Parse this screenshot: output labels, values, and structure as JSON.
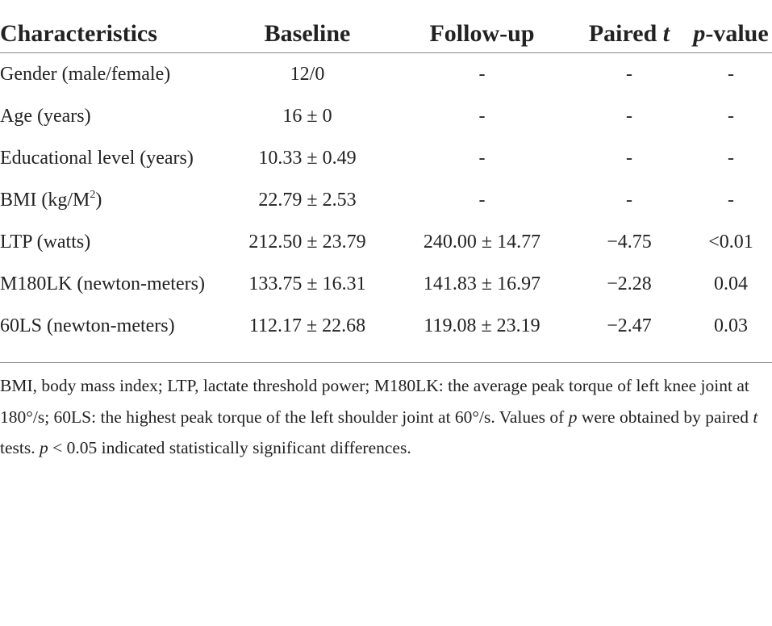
{
  "table": {
    "header": [
      "Characteristics",
      "Baseline",
      "Follow-up",
      [
        "Paired ",
        {
          "text": "t",
          "style": "italic"
        }
      ],
      [
        {
          "text": "p",
          "style": "italic"
        },
        "-value"
      ]
    ],
    "rows": [
      [
        "Gender (male/female)",
        "12/0",
        "-",
        "-",
        "-"
      ],
      [
        "Age (years)",
        "16 ± 0",
        "-",
        "-",
        "-"
      ],
      [
        "Educational level (years)",
        "10.33 ± 0.49",
        "-",
        "-",
        "-"
      ],
      [
        [
          "BMI (kg/M",
          {
            "text": "2",
            "style": "sup"
          },
          ")"
        ],
        "22.79 ± 2.53",
        "-",
        "-",
        "-"
      ],
      [
        "LTP (watts)",
        "212.50 ± 23.79",
        "240.00 ± 14.77",
        "−4.75",
        "<0.01"
      ],
      [
        "M180LK (newton-meters)",
        "133.75 ± 16.31",
        "141.83 ± 16.97",
        "−2.28",
        "0.04"
      ],
      [
        "60LS (newton-meters)",
        "112.17 ± 22.68",
        "119.08 ± 23.19",
        "−2.47",
        "0.03"
      ]
    ],
    "footnote": [
      "BMI, body mass index; LTP, lactate threshold power; M180LK: the average peak torque of left knee joint at 180°/s; 60LS: the highest peak torque of the left shoulder joint at 60°/s. Values of ",
      {
        "text": "p",
        "style": "italic"
      },
      " were obtained by paired ",
      {
        "text": "t",
        "style": "italic"
      },
      " tests. ",
      {
        "text": "p",
        "style": "italic"
      },
      " < 0.05 indicated statistically significant differences."
    ]
  }
}
